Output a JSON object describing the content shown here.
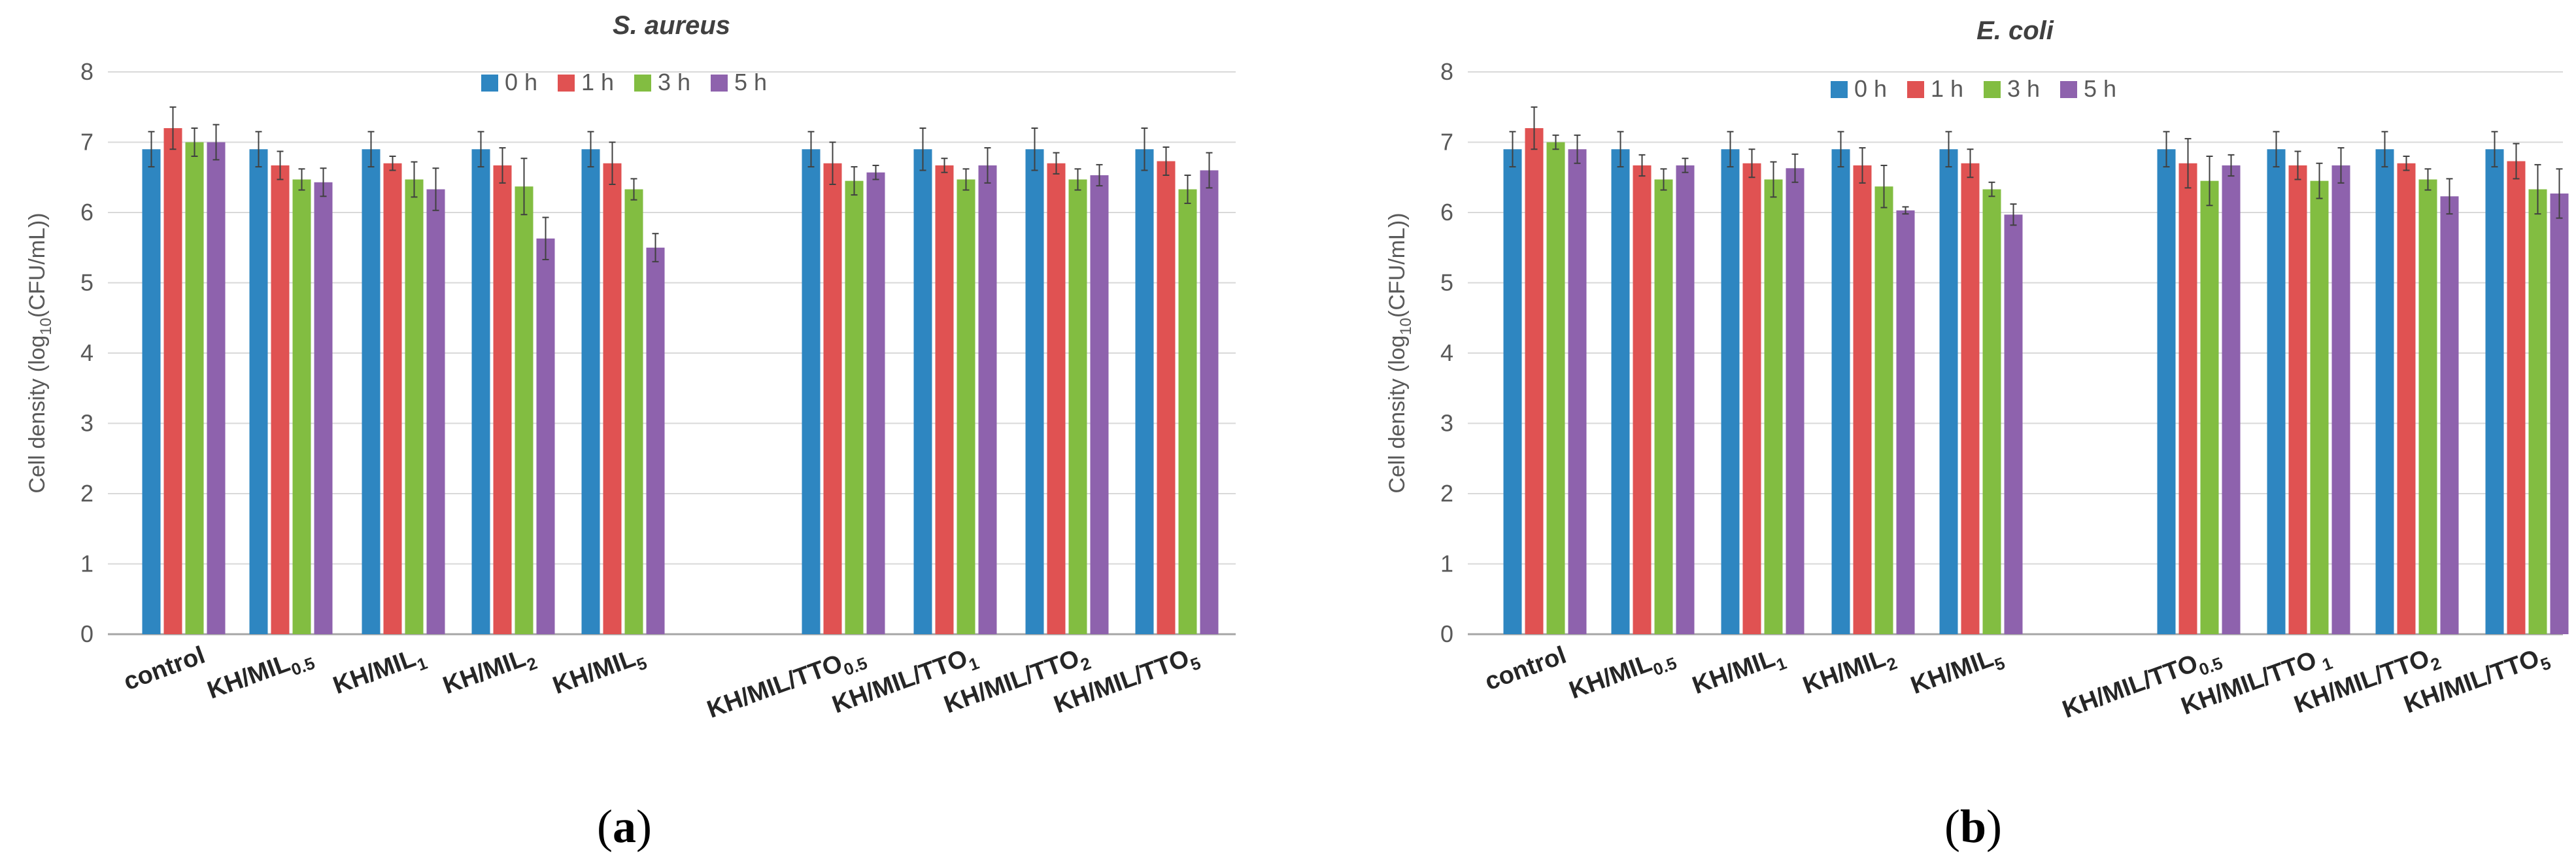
{
  "colors": {
    "h0": "#2e86c1",
    "h1": "#e05252",
    "h3": "#82bd41",
    "h5": "#8e62ad",
    "grid": "#d9d9d9",
    "axis": "#a6a6a6",
    "text": "#595959",
    "title": "#404040"
  },
  "panels": [
    {
      "label": "(a)",
      "label_parts": {
        "open": "(",
        "letter": "a",
        "close": ")"
      }
    },
    {
      "label": "(b)",
      "label_parts": {
        "open": "(",
        "letter": "b",
        "close": ")"
      }
    }
  ],
  "chart_data": [
    {
      "type": "bar",
      "title": "S. aureus",
      "ylabel": "Cell density (log10(CFU/mL))",
      "ylabel_parts": {
        "pre": "Cell density (log",
        "sub": "10",
        "post": "(CFU/mL))"
      },
      "ylim": [
        0,
        8
      ],
      "yticks": [
        0,
        1,
        2,
        3,
        4,
        5,
        6,
        7,
        8
      ],
      "grid": true,
      "legend_position": "top-center",
      "categories": [
        "control",
        "KH/MIL0.5",
        "KH/MIL1",
        "KH/MIL2",
        "KH/MIL5",
        "",
        "KH/MIL/TTO0.5",
        "KH/MIL/TTO1",
        "KH/MIL/TTO2",
        "KH/MIL/TTO5"
      ],
      "category_parts": [
        {
          "base": "control",
          "sub": ""
        },
        {
          "base": "KH/MIL",
          "sub": "0.5"
        },
        {
          "base": "KH/MIL",
          "sub": "1"
        },
        {
          "base": "KH/MIL",
          "sub": "2"
        },
        {
          "base": "KH/MIL",
          "sub": "5"
        },
        {
          "base": "",
          "sub": ""
        },
        {
          "base": "KH/MIL/TTO",
          "sub": "0.5"
        },
        {
          "base": "KH/MIL/TTO",
          "sub": "1"
        },
        {
          "base": "KH/MIL/TTO",
          "sub": "2"
        },
        {
          "base": "KH/MIL/TTO",
          "sub": "5"
        }
      ],
      "series": [
        {
          "name": "0 h",
          "color_key": "h0",
          "values": [
            6.9,
            6.9,
            6.9,
            6.9,
            6.9,
            null,
            6.9,
            6.9,
            6.9,
            6.9
          ],
          "errors": [
            0.25,
            0.25,
            0.25,
            0.25,
            0.25,
            null,
            0.25,
            0.3,
            0.3,
            0.3
          ]
        },
        {
          "name": "1 h",
          "color_key": "h1",
          "values": [
            7.2,
            6.67,
            6.7,
            6.67,
            6.7,
            null,
            6.7,
            6.67,
            6.7,
            6.73
          ],
          "errors": [
            0.3,
            0.2,
            0.1,
            0.25,
            0.3,
            null,
            0.3,
            0.1,
            0.15,
            0.2
          ]
        },
        {
          "name": "3 h",
          "color_key": "h3",
          "values": [
            7.0,
            6.47,
            6.47,
            6.37,
            6.33,
            null,
            6.45,
            6.47,
            6.47,
            6.33
          ],
          "errors": [
            0.2,
            0.15,
            0.25,
            0.4,
            0.15,
            null,
            0.2,
            0.15,
            0.15,
            0.2
          ]
        },
        {
          "name": "5 h",
          "color_key": "h5",
          "values": [
            7.0,
            6.43,
            6.33,
            5.63,
            5.5,
            null,
            6.57,
            6.67,
            6.53,
            6.6
          ],
          "errors": [
            0.25,
            0.2,
            0.3,
            0.3,
            0.2,
            null,
            0.1,
            0.25,
            0.15,
            0.25
          ]
        }
      ]
    },
    {
      "type": "bar",
      "title": "E. coli",
      "ylabel": "Cell density (log10(CFU/mL))",
      "ylabel_parts": {
        "pre": "Cell density (log",
        "sub": "10",
        "post": "(CFU/mL))"
      },
      "ylim": [
        0,
        8
      ],
      "yticks": [
        0,
        1,
        2,
        3,
        4,
        5,
        6,
        7,
        8
      ],
      "grid": true,
      "legend_position": "top-center",
      "categories": [
        "control",
        "KH/MIL0.5",
        "KH/MIL1",
        "KH/MIL2",
        "KH/MIL5",
        "",
        "KH/MIL/TTO0.5",
        "KH/MIL/TTO1",
        "KH/MIL/TTO2",
        "KH/MIL/TTO5"
      ],
      "category_parts": [
        {
          "base": "control",
          "sub": ""
        },
        {
          "base": "KH/MIL",
          "sub": "0.5"
        },
        {
          "base": "KH/MIL",
          "sub": "1"
        },
        {
          "base": "KH/MIL",
          "sub": "2"
        },
        {
          "base": "KH/MIL",
          "sub": "5"
        },
        {
          "base": "",
          "sub": ""
        },
        {
          "base": "KH/MIL/TTO",
          "sub": "0.5"
        },
        {
          "base": "KH/MIL/TTO",
          "sub": " 1"
        },
        {
          "base": "KH/MIL/TTO",
          "sub": "2"
        },
        {
          "base": "KH/MIL/TTO",
          "sub": "5"
        }
      ],
      "series": [
        {
          "name": "0 h",
          "color_key": "h0",
          "values": [
            6.9,
            6.9,
            6.9,
            6.9,
            6.9,
            null,
            6.9,
            6.9,
            6.9,
            6.9
          ],
          "errors": [
            0.25,
            0.25,
            0.25,
            0.25,
            0.25,
            null,
            0.25,
            0.25,
            0.25,
            0.25
          ]
        },
        {
          "name": "1 h",
          "color_key": "h1",
          "values": [
            7.2,
            6.67,
            6.7,
            6.67,
            6.7,
            null,
            6.7,
            6.67,
            6.7,
            6.73
          ],
          "errors": [
            0.3,
            0.15,
            0.2,
            0.25,
            0.2,
            null,
            0.35,
            0.2,
            0.1,
            0.25
          ]
        },
        {
          "name": "3 h",
          "color_key": "h3",
          "values": [
            7.0,
            6.47,
            6.47,
            6.37,
            6.33,
            null,
            6.45,
            6.45,
            6.47,
            6.33
          ],
          "errors": [
            0.1,
            0.15,
            0.25,
            0.3,
            0.1,
            null,
            0.35,
            0.25,
            0.15,
            0.35
          ]
        },
        {
          "name": "5 h",
          "color_key": "h5",
          "values": [
            6.9,
            6.67,
            6.63,
            6.03,
            5.97,
            null,
            6.67,
            6.67,
            6.23,
            6.27
          ],
          "errors": [
            0.2,
            0.1,
            0.2,
            0.05,
            0.15,
            null,
            0.15,
            0.25,
            0.25,
            0.35
          ]
        }
      ]
    }
  ]
}
